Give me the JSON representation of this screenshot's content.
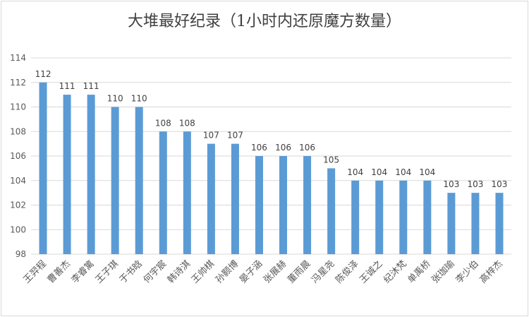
{
  "chart_data": {
    "type": "bar",
    "title": "大堆最好纪录（1小时内还原魔方数量）",
    "xlabel": "",
    "ylabel": "",
    "ylim": [
      98,
      114
    ],
    "yticks": [
      98,
      100,
      102,
      104,
      106,
      108,
      110,
      112,
      114
    ],
    "grid": true,
    "categories": [
      "王羿程",
      "曹善杰",
      "李睿篱",
      "王子琪",
      "于书晗",
      "何宇宸",
      "韩诗淇",
      "王帅棋",
      "孙颢博",
      "晏子涵",
      "张展赫",
      "董雨晨",
      "冯星尧",
      "陈俊泽",
      "王诚之",
      "纪沐梵",
      "单禹桥",
      "张珈瑜",
      "李少伯",
      "高梓杰"
    ],
    "values": [
      112,
      111,
      111,
      110,
      110,
      108,
      108,
      107,
      107,
      106,
      106,
      106,
      105,
      104,
      104,
      104,
      104,
      103,
      103,
      103
    ],
    "bar_color": "#5b9bd5"
  }
}
